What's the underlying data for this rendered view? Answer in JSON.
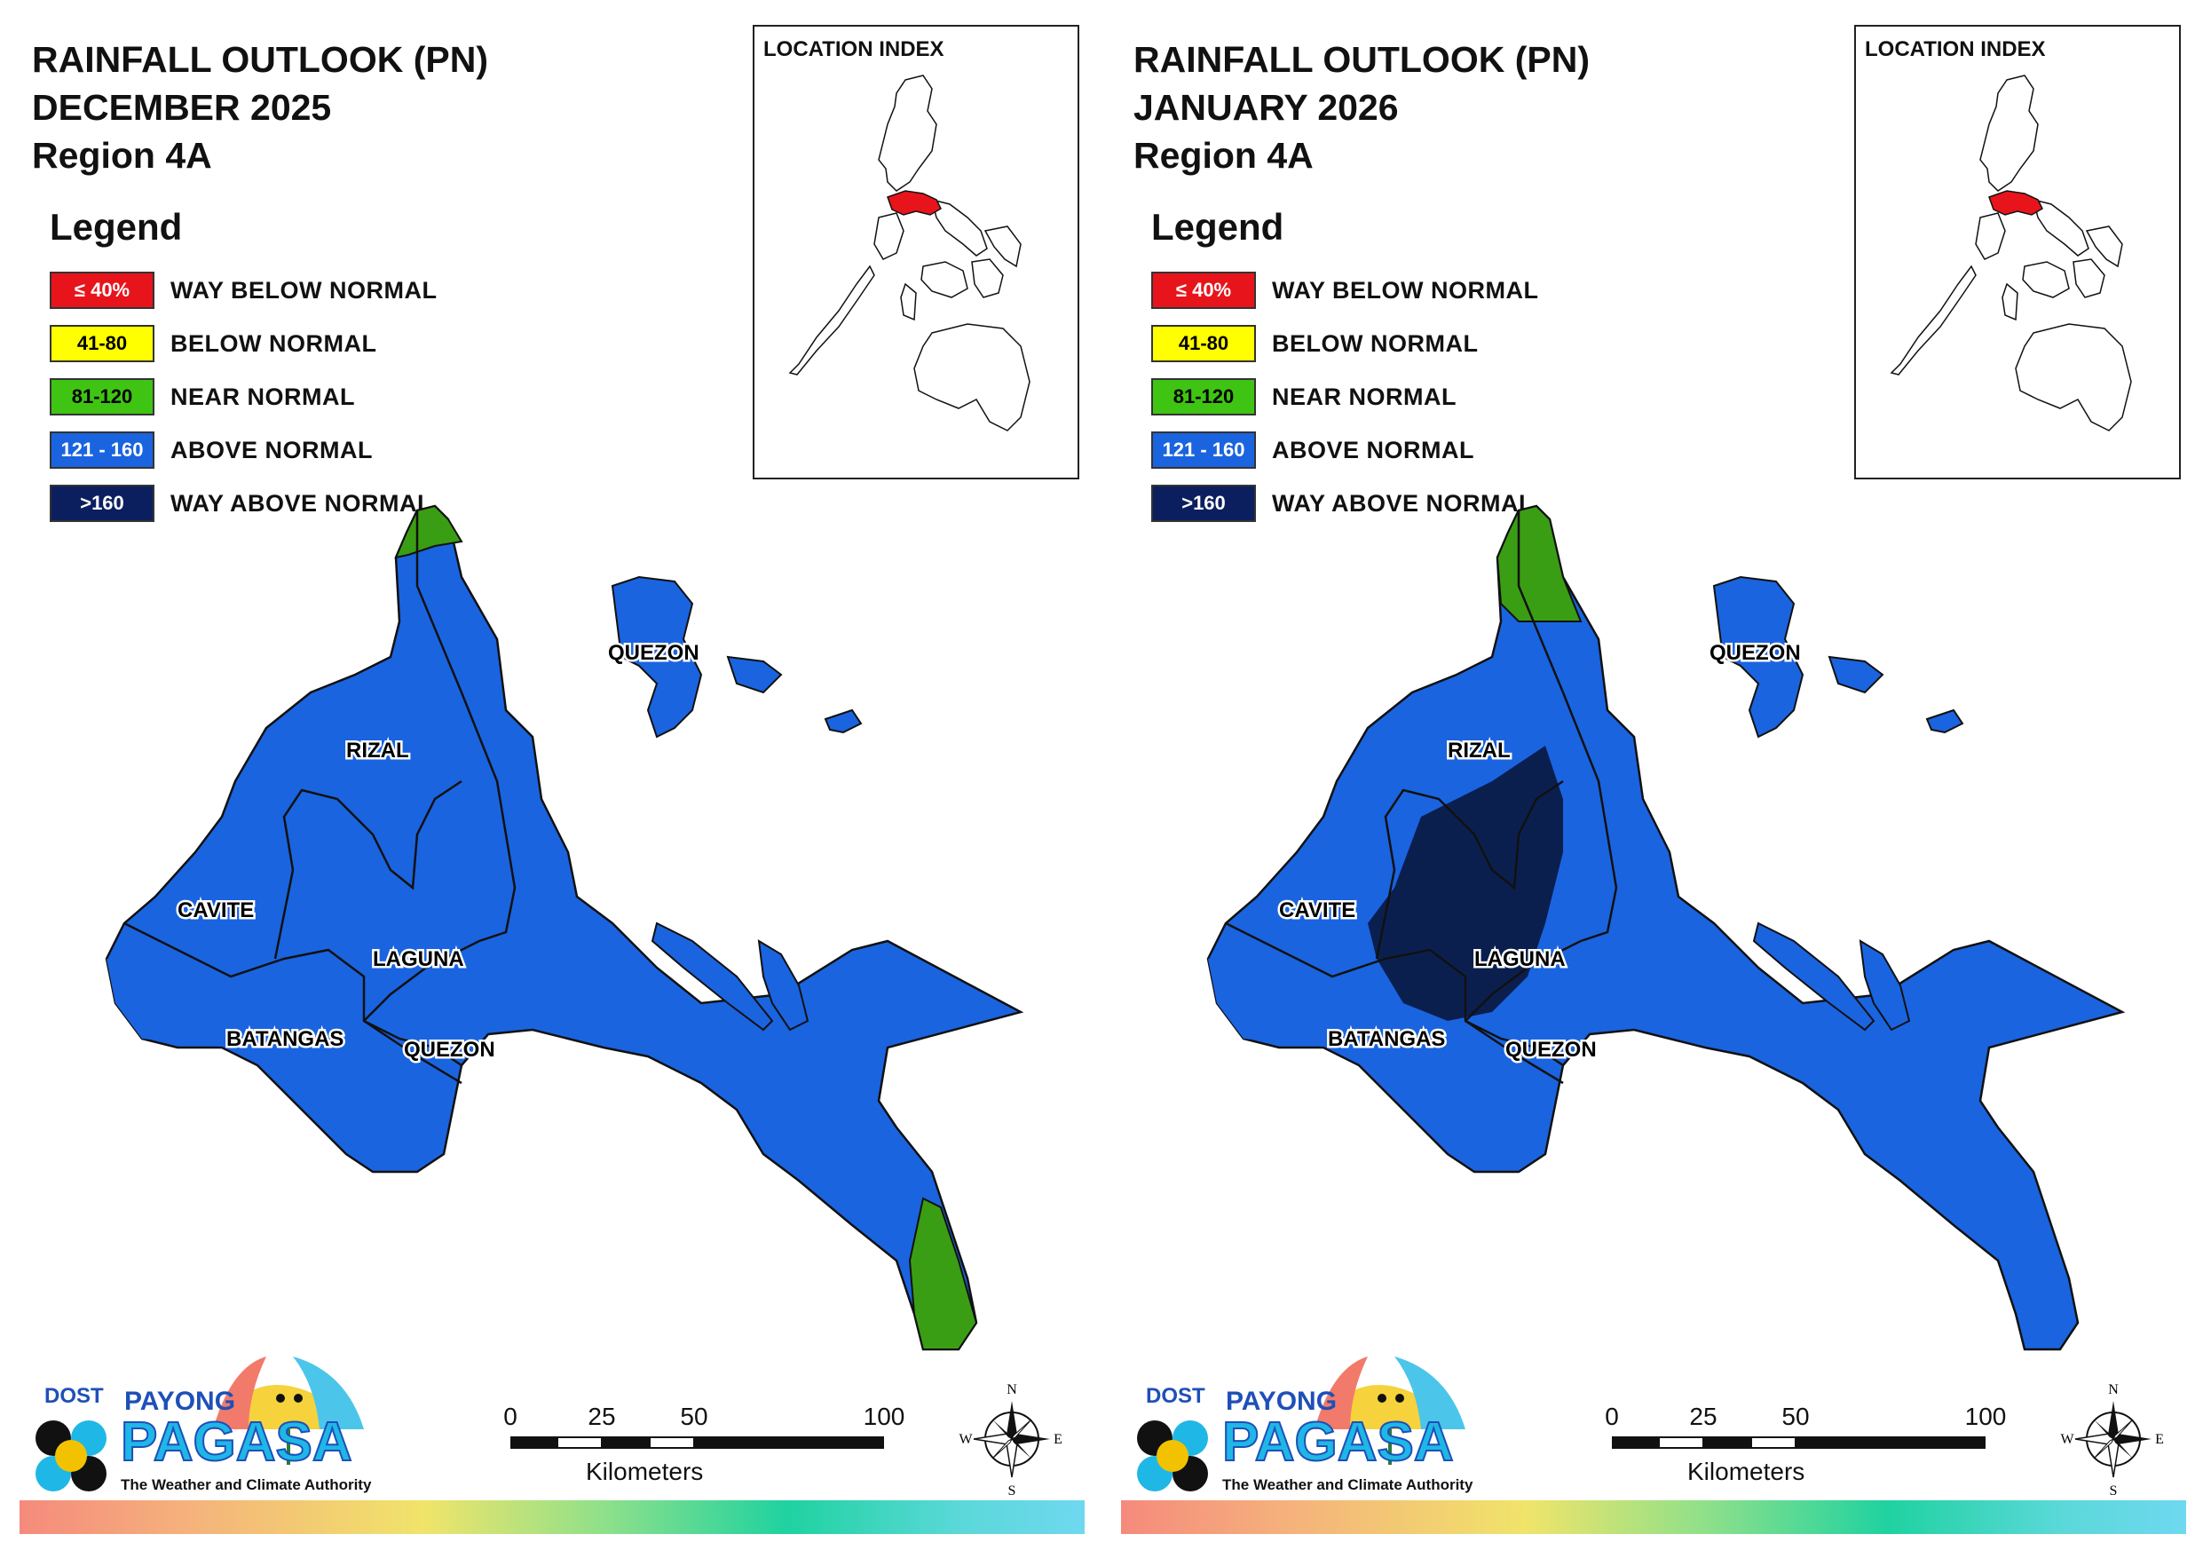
{
  "panels": [
    {
      "title_line1": "RAINFALL OUTLOOK (PN)",
      "title_line2": "DECEMBER 2025",
      "title_line3": "Region 4A",
      "variant": "december"
    },
    {
      "title_line1": "RAINFALL OUTLOOK (PN)",
      "title_line2": "JANUARY 2026",
      "title_line3": "Region 4A",
      "variant": "january"
    }
  ],
  "legend": {
    "title": "Legend",
    "items": [
      {
        "range": "≤ 40%",
        "label": "WAY BELOW NORMAL",
        "color": "#e8141b",
        "text_color": "#ffffff"
      },
      {
        "range": "41-80",
        "label": "BELOW NORMAL",
        "color": "#ffff00",
        "text_color": "#000000"
      },
      {
        "range": "81-120",
        "label": "NEAR NORMAL",
        "color": "#3fc413",
        "text_color": "#000000"
      },
      {
        "range": "121 - 160",
        "label": "ABOVE NORMAL",
        "color": "#1a64e0",
        "text_color": "#ffffff"
      },
      {
        "range": ">160",
        "label": "WAY ABOVE NORMAL",
        "color": "#0b1f5e",
        "text_color": "#ffffff"
      }
    ]
  },
  "inset": {
    "title": "LOCATION INDEX",
    "highlight_color": "#e8141b"
  },
  "provinces": {
    "quezon_north": "QUEZON",
    "rizal": "RIZAL",
    "cavite": "CAVITE",
    "laguna": "LAGUNA",
    "batangas": "BATANGAS",
    "quezon_south": "QUEZON"
  },
  "map_colors": {
    "above_normal": "#1a64e0",
    "near_normal": "#3a9e14",
    "way_above_normal": "#0b1f4f"
  },
  "logo": {
    "dost": "DOST",
    "payong": "PAYONG",
    "pagasa": "PAGASA",
    "tagline": "The Weather and Climate Authority"
  },
  "scale_bar": {
    "ticks": [
      "0",
      "25",
      "50",
      "100"
    ],
    "unit": "Kilometers"
  },
  "compass": {
    "n": "N",
    "s": "S",
    "e": "E",
    "w": "W"
  }
}
